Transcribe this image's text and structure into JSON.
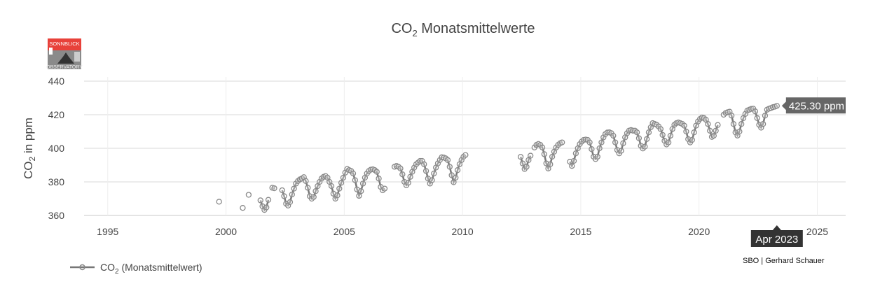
{
  "chart_data": {
    "type": "line",
    "title": "CO",
    "title_sub": "2",
    "title_rest": " Monatsmittelwerte",
    "ylabel": "CO",
    "ylabel_sub": "2",
    "ylabel_rest": " in ppm",
    "xlim": [
      1994,
      2026.2
    ],
    "ylim": [
      360,
      440
    ],
    "x_ticks": [
      "1995",
      "2000",
      "2005",
      "2010",
      "2015",
      "2020",
      "2025"
    ],
    "y_ticks": [
      "360",
      "380",
      "400",
      "420",
      "440"
    ],
    "grid": true,
    "legend_position": "bottom-left",
    "series": [
      {
        "legend": {
          "prefix": "CO",
          "sub": "2",
          "rest": " (Monatsmittelwert)"
        },
        "color": "#777777",
        "marker": "open-circle",
        "segments": [
          {
            "start": "1999-09",
            "values": [
              368.2
            ]
          },
          {
            "start": "2000-09",
            "values": [
              364.5
            ]
          },
          {
            "start": "2000-12",
            "values": [
              372.3
            ]
          },
          {
            "start": "2001-06",
            "values": [
              369.0,
              365.5,
              363.3,
              364.8,
              369.3
            ]
          },
          {
            "start": "2001-12",
            "values": [
              376.5,
              376.2
            ]
          },
          {
            "start": "2002-05",
            "values": [
              375.0,
              371.5,
              367.0,
              365.9,
              368.0,
              372.5,
              376.0,
              379.0,
              380.5,
              381.5,
              382.0,
              382.8,
              380.5,
              376.5,
              371.5,
              370.0,
              371.0,
              374.5,
              377.5,
              380.0,
              382.0,
              383.0,
              383.5,
              382.5,
              380.0,
              377.5,
              373.0,
              370.0,
              372.0,
              376.0,
              379.5,
              382.5,
              385.5,
              387.7,
              387.0,
              386.5,
              385.0,
              381.0,
              375.5,
              371.7,
              374.5,
              379.0,
              382.5,
              385.0,
              386.5,
              387.3,
              387.5,
              387.0,
              386.0,
              382.0,
              377.0,
              375.0,
              376.0
            ]
          },
          {
            "start": "2007-02",
            "values": [
              389.0,
              389.5,
              389.0,
              388.0,
              384.5,
              380.0,
              378.0,
              379.5,
              383.0,
              386.0,
              388.5,
              390.5,
              391.5,
              392.5,
              392.5,
              390.5,
              386.5,
              382.0,
              379.0,
              381.0,
              385.0,
              388.5,
              391.0,
              393.0,
              394.7,
              394.5,
              394.0,
              393.0,
              389.0,
              384.0,
              379.8,
              382.5,
              387.0,
              390.5,
              393.0,
              395.0,
              396.0
            ]
          },
          {
            "start": "2012-06",
            "values": [
              394.9,
              391.0,
              387.7,
              389.0,
              393.0,
              395.6
            ]
          },
          {
            "start": "2013-01",
            "values": [
              400.5,
              402.0,
              402.6,
              402.0,
              400.5,
              396.5,
              391.0,
              388.0,
              390.5,
              395.0,
              398.0,
              400.5,
              402.0,
              403.0,
              403.5
            ]
          },
          {
            "start": "2014-07",
            "values": [
              392.0,
              389.5,
              392.5,
              397.0,
              400.0,
              402.5,
              404.0,
              405.0,
              405.2,
              405.0,
              403.5,
              399.5,
              395.0,
              393.6,
              395.0,
              400.0,
              403.5,
              406.5,
              408.5,
              409.4,
              409.5,
              409.0,
              407.5,
              403.5,
              399.0,
              397.0,
              398.5,
              403.0,
              406.5,
              409.0,
              410.5,
              410.9,
              410.5,
              410.5,
              409.5,
              406.0,
              401.5,
              399.9,
              401.0,
              405.5,
              409.5,
              412.5,
              415.0,
              414.5,
              414.0,
              413.0,
              411.5,
              408.0,
              404.5,
              402.3,
              403.5,
              407.5,
              411.5,
              414.0,
              415.0,
              415.4,
              415.0,
              414.5,
              413.5,
              410.0,
              405.5,
              403.5,
              405.0,
              409.5,
              413.5,
              416.0,
              417.5,
              418.3,
              418.0,
              417.0,
              414.5,
              410.5,
              406.8,
              407.5,
              410.5,
              413.9
            ]
          },
          {
            "start": "2021-01",
            "values": [
              420.0,
              421.0,
              421.5,
              421.8,
              419.5,
              414.5,
              409.5,
              407.6,
              410.0,
              414.5,
              418.0,
              420.5,
              422.5,
              423.0,
              423.5,
              423.6,
              422.0,
              418.0,
              414.0,
              412.3,
              414.5,
              419.5,
              423.0,
              423.6,
              424.0,
              424.5,
              424.8,
              425.3
            ]
          }
        ]
      }
    ],
    "tooltip": {
      "date": "2023-04",
      "x_label": "Apr 2023",
      "y_label": "425.30 ppm"
    },
    "credit": "SBO | Gerhard Schauer"
  },
  "logo": {
    "top": "SONNBLICK",
    "bottom": "OBSERVATORY",
    "color": "#e8413a"
  }
}
